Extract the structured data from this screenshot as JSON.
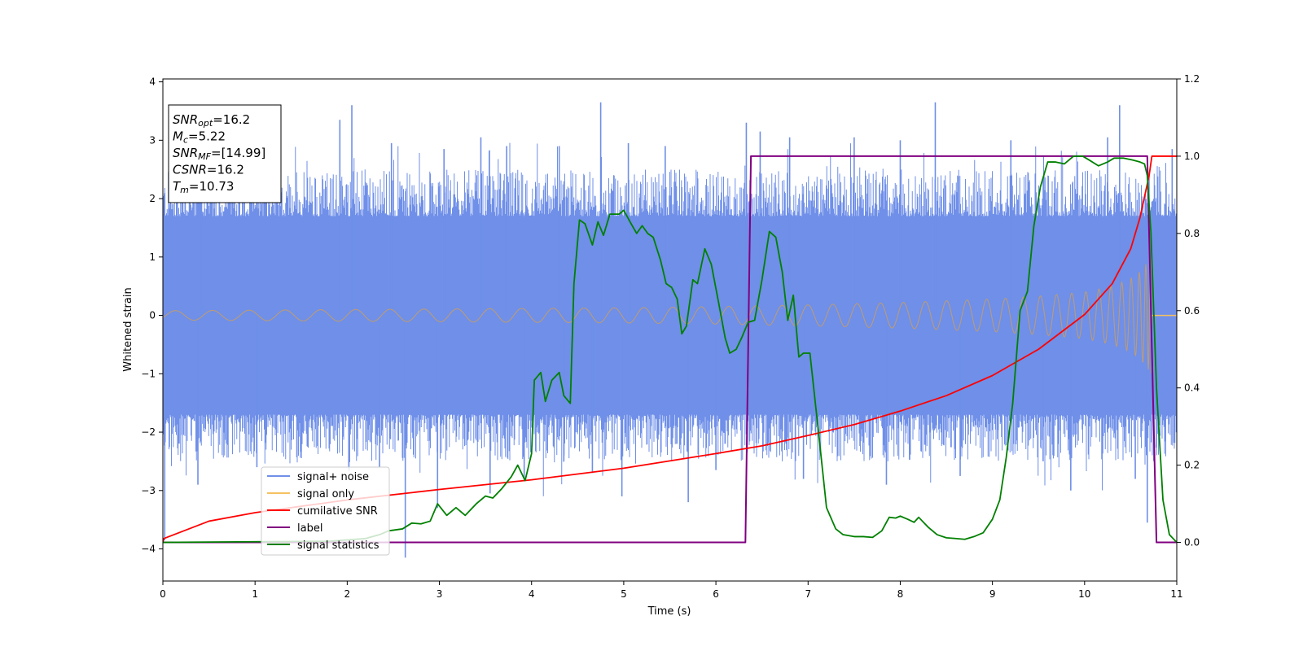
{
  "chart_data": {
    "type": "line",
    "xlabel": "Time (s)",
    "ylabel": "Whitened strain",
    "xlim": [
      0,
      11
    ],
    "ylim_left": [
      -4.55,
      4.05
    ],
    "ylim_right": [
      -0.1,
      1.2
    ],
    "x_ticks": [
      "0",
      "1",
      "2",
      "3",
      "4",
      "5",
      "6",
      "7",
      "8",
      "9",
      "10",
      "11"
    ],
    "y_ticks_left": [
      "−4",
      "−3",
      "−2",
      "−1",
      "0",
      "1",
      "2",
      "3",
      "4"
    ],
    "y_ticks_right": [
      "0.0",
      "0.2",
      "0.4",
      "0.6",
      "0.8",
      "1.0",
      "1.2"
    ],
    "legend": {
      "placement": "lower-left",
      "entries": [
        {
          "label": "signal+ noise",
          "color": "#6f8fe8"
        },
        {
          "label": "signal only",
          "color": "#f5c062"
        },
        {
          "label": "cumilative SNR",
          "color": "#ff0000"
        },
        {
          "label": "label",
          "color": "#800080"
        },
        {
          "label": "signal statistics",
          "color": "#008000"
        }
      ]
    },
    "info_box": {
      "placement": "top-left",
      "lines": [
        {
          "main": "SNR",
          "sub": "opt",
          "rest": "=16.2"
        },
        {
          "main": "M",
          "sub": "c",
          "rest": "=5.22"
        },
        {
          "main": "SNR",
          "sub": "MF",
          "rest": "=[14.99]"
        },
        {
          "main": "CSNR",
          "sub": "",
          "rest": "=16.2"
        },
        {
          "main": "T",
          "sub": "m",
          "rest": "=10.73"
        }
      ]
    },
    "series": [
      {
        "name": "signal+ noise",
        "axis": "left",
        "color": "#6f8fe8",
        "noise_band": {
          "core_amplitude": 1.4,
          "typical_peak": 2.2,
          "max_peak": 3.65,
          "min_peak": -4.15
        },
        "spikes": [
          [
            0.02,
            -3.85
          ],
          [
            0.02,
            2.1
          ],
          [
            0.38,
            -2.9
          ],
          [
            0.42,
            2.35
          ],
          [
            1.02,
            -2.6
          ],
          [
            1.92,
            3.35
          ],
          [
            2.05,
            3.6
          ],
          [
            2.35,
            -2.6
          ],
          [
            2.48,
            2.95
          ],
          [
            2.63,
            -4.15
          ],
          [
            2.98,
            -3.3
          ],
          [
            3.05,
            2.85
          ],
          [
            3.45,
            3.05
          ],
          [
            3.55,
            -3.05
          ],
          [
            3.73,
            2.9
          ],
          [
            3.92,
            -2.8
          ],
          [
            4.3,
            2.9
          ],
          [
            4.35,
            -2.5
          ],
          [
            4.66,
            -2.7
          ],
          [
            4.75,
            3.65
          ],
          [
            4.98,
            -3.1
          ],
          [
            5.05,
            2.95
          ],
          [
            5.45,
            2.9
          ],
          [
            5.7,
            -3.2
          ],
          [
            6.0,
            -2.65
          ],
          [
            6.33,
            3.3
          ],
          [
            6.48,
            3.15
          ],
          [
            6.8,
            3.05
          ],
          [
            6.95,
            -2.8
          ],
          [
            7.5,
            3.05
          ],
          [
            7.85,
            -2.9
          ],
          [
            8.0,
            3.0
          ],
          [
            8.38,
            3.65
          ],
          [
            8.65,
            -2.75
          ],
          [
            9.2,
            3.0
          ],
          [
            9.55,
            -2.5
          ],
          [
            9.85,
            -3.0
          ],
          [
            10.25,
            3.05
          ],
          [
            10.38,
            3.6
          ],
          [
            10.55,
            -2.8
          ],
          [
            10.68,
            -3.55
          ],
          [
            10.95,
            2.85
          ]
        ]
      },
      {
        "name": "signal only",
        "axis": "left",
        "color": "#f5c062",
        "envelope": [
          [
            0,
            0.08
          ],
          [
            1,
            0.09
          ],
          [
            2,
            0.1
          ],
          [
            3,
            0.11
          ],
          [
            4,
            0.12
          ],
          [
            5,
            0.13
          ],
          [
            6,
            0.15
          ],
          [
            7,
            0.18
          ],
          [
            8,
            0.22
          ],
          [
            9,
            0.28
          ],
          [
            9.5,
            0.33
          ],
          [
            10,
            0.4
          ],
          [
            10.3,
            0.5
          ],
          [
            10.5,
            0.63
          ],
          [
            10.6,
            0.75
          ],
          [
            10.7,
            0.95
          ],
          [
            10.73,
            1.05
          ],
          [
            10.78,
            0.1
          ],
          [
            11,
            0.0
          ]
        ],
        "zero_after": 10.73
      },
      {
        "name": "cumilative SNR",
        "axis": "right",
        "color": "#ff0000",
        "points": [
          [
            0,
            0.0
          ],
          [
            0.01,
            0.01
          ],
          [
            0.5,
            0.055
          ],
          [
            1,
            0.077
          ],
          [
            2,
            0.11
          ],
          [
            3,
            0.137
          ],
          [
            4,
            0.162
          ],
          [
            5,
            0.192
          ],
          [
            6,
            0.23
          ],
          [
            6.5,
            0.25
          ],
          [
            7,
            0.277
          ],
          [
            7.5,
            0.305
          ],
          [
            8,
            0.34
          ],
          [
            8.5,
            0.38
          ],
          [
            9,
            0.432
          ],
          [
            9.5,
            0.5
          ],
          [
            10,
            0.59
          ],
          [
            10.3,
            0.67
          ],
          [
            10.5,
            0.76
          ],
          [
            10.6,
            0.84
          ],
          [
            10.7,
            0.95
          ],
          [
            10.73,
            1.0
          ],
          [
            11,
            1.0
          ]
        ]
      },
      {
        "name": "label",
        "axis": "right",
        "color": "#800080",
        "points": [
          [
            0,
            0.0
          ],
          [
            6.32,
            0.0
          ],
          [
            6.38,
            1.0
          ],
          [
            10.68,
            1.0
          ],
          [
            10.78,
            0.0
          ],
          [
            11,
            0.0
          ]
        ]
      },
      {
        "name": "signal statistics",
        "axis": "right",
        "color": "#008000",
        "points": [
          [
            0,
            0.0
          ],
          [
            1.8,
            0.003
          ],
          [
            2.2,
            0.01
          ],
          [
            2.35,
            0.02
          ],
          [
            2.45,
            0.03
          ],
          [
            2.6,
            0.035
          ],
          [
            2.7,
            0.05
          ],
          [
            2.8,
            0.048
          ],
          [
            2.9,
            0.055
          ],
          [
            2.98,
            0.1
          ],
          [
            3.08,
            0.07
          ],
          [
            3.18,
            0.09
          ],
          [
            3.28,
            0.07
          ],
          [
            3.4,
            0.1
          ],
          [
            3.5,
            0.12
          ],
          [
            3.58,
            0.115
          ],
          [
            3.68,
            0.14
          ],
          [
            3.78,
            0.17
          ],
          [
            3.85,
            0.2
          ],
          [
            3.93,
            0.16
          ],
          [
            4.0,
            0.23
          ],
          [
            4.03,
            0.42
          ],
          [
            4.1,
            0.44
          ],
          [
            4.15,
            0.365
          ],
          [
            4.22,
            0.42
          ],
          [
            4.3,
            0.44
          ],
          [
            4.35,
            0.38
          ],
          [
            4.42,
            0.36
          ],
          [
            4.46,
            0.67
          ],
          [
            4.52,
            0.835
          ],
          [
            4.58,
            0.825
          ],
          [
            4.66,
            0.77
          ],
          [
            4.72,
            0.83
          ],
          [
            4.78,
            0.795
          ],
          [
            4.85,
            0.85
          ],
          [
            4.95,
            0.85
          ],
          [
            5.0,
            0.86
          ],
          [
            5.08,
            0.825
          ],
          [
            5.14,
            0.8
          ],
          [
            5.2,
            0.82
          ],
          [
            5.26,
            0.8
          ],
          [
            5.32,
            0.79
          ],
          [
            5.4,
            0.73
          ],
          [
            5.46,
            0.67
          ],
          [
            5.52,
            0.66
          ],
          [
            5.58,
            0.63
          ],
          [
            5.63,
            0.54
          ],
          [
            5.68,
            0.56
          ],
          [
            5.75,
            0.68
          ],
          [
            5.8,
            0.67
          ],
          [
            5.88,
            0.76
          ],
          [
            5.95,
            0.72
          ],
          [
            6.03,
            0.62
          ],
          [
            6.1,
            0.53
          ],
          [
            6.15,
            0.49
          ],
          [
            6.22,
            0.5
          ],
          [
            6.28,
            0.53
          ],
          [
            6.35,
            0.57
          ],
          [
            6.42,
            0.575
          ],
          [
            6.5,
            0.68
          ],
          [
            6.58,
            0.805
          ],
          [
            6.65,
            0.79
          ],
          [
            6.72,
            0.7
          ],
          [
            6.78,
            0.575
          ],
          [
            6.84,
            0.64
          ],
          [
            6.9,
            0.48
          ],
          [
            6.95,
            0.49
          ],
          [
            7.02,
            0.49
          ],
          [
            7.07,
            0.38
          ],
          [
            7.12,
            0.27
          ],
          [
            7.2,
            0.09
          ],
          [
            7.3,
            0.035
          ],
          [
            7.38,
            0.02
          ],
          [
            7.5,
            0.015
          ],
          [
            7.6,
            0.015
          ],
          [
            7.7,
            0.013
          ],
          [
            7.8,
            0.03
          ],
          [
            7.88,
            0.065
          ],
          [
            7.95,
            0.063
          ],
          [
            8.0,
            0.068
          ],
          [
            8.08,
            0.06
          ],
          [
            8.15,
            0.052
          ],
          [
            8.2,
            0.065
          ],
          [
            8.3,
            0.04
          ],
          [
            8.4,
            0.02
          ],
          [
            8.5,
            0.012
          ],
          [
            8.6,
            0.01
          ],
          [
            8.7,
            0.008
          ],
          [
            8.8,
            0.015
          ],
          [
            8.9,
            0.025
          ],
          [
            9.0,
            0.06
          ],
          [
            9.08,
            0.11
          ],
          [
            9.15,
            0.22
          ],
          [
            9.22,
            0.36
          ],
          [
            9.3,
            0.6
          ],
          [
            9.38,
            0.65
          ],
          [
            9.45,
            0.82
          ],
          [
            9.52,
            0.92
          ],
          [
            9.6,
            0.985
          ],
          [
            9.68,
            0.985
          ],
          [
            9.78,
            0.98
          ],
          [
            9.88,
            1.0
          ],
          [
            9.98,
            1.0
          ],
          [
            10.05,
            0.99
          ],
          [
            10.15,
            0.975
          ],
          [
            10.25,
            0.985
          ],
          [
            10.32,
            0.995
          ],
          [
            10.42,
            0.995
          ],
          [
            10.52,
            0.99
          ],
          [
            10.6,
            0.985
          ],
          [
            10.65,
            0.98
          ],
          [
            10.68,
            0.95
          ],
          [
            10.72,
            0.8
          ],
          [
            10.78,
            0.4
          ],
          [
            10.85,
            0.11
          ],
          [
            10.92,
            0.02
          ],
          [
            11,
            0.0
          ]
        ]
      }
    ]
  }
}
